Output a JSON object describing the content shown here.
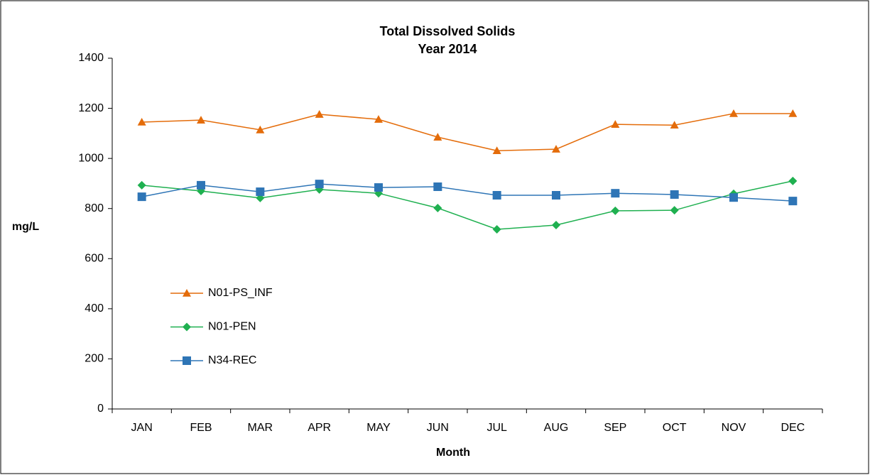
{
  "chart_data": {
    "type": "line",
    "title": [
      "Total Dissolved Solids",
      "Year 2014"
    ],
    "x_label": "Month",
    "y_label": "mg/L",
    "categories": [
      "JAN",
      "FEB",
      "MAR",
      "APR",
      "MAY",
      "JUN",
      "JUL",
      "AUG",
      "SEP",
      "OCT",
      "NOV",
      "DEC"
    ],
    "series": [
      {
        "name": "N01-PS_INF",
        "color": "#e46c0a",
        "marker": "triangle",
        "values": [
          1145,
          1153,
          1114,
          1176,
          1156,
          1085,
          1031,
          1037,
          1136,
          1133,
          1179,
          1179
        ]
      },
      {
        "name": "N01-PEN",
        "color": "#1fb050",
        "marker": "diamond",
        "values": [
          893,
          870,
          842,
          876,
          861,
          802,
          717,
          734,
          791,
          793,
          859,
          910
        ]
      },
      {
        "name": "N34-REC",
        "color": "#2e75b6",
        "marker": "square",
        "values": [
          847,
          893,
          867,
          898,
          884,
          887,
          853,
          853,
          861,
          856,
          844,
          830
        ]
      }
    ],
    "ylim": [
      0,
      1400
    ],
    "yticks": [
      0,
      200,
      400,
      600,
      800,
      1000,
      1200,
      1400
    ],
    "grid": false,
    "legend": "left"
  }
}
